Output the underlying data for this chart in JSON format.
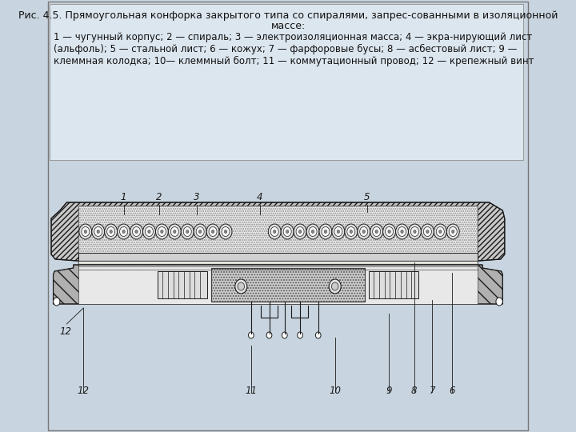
{
  "figure_bg": "#c8d4df",
  "text_box_bg": "#dce6ef",
  "text_box_border": "#999999",
  "dc": "#1a1a1a",
  "title_line1": "Рис. 4.5. Прямоугольная конфорка закрытого типа со спиралями, запрес-сованными в изоляционной",
  "title_line2": "массе:",
  "desc_line1": "1 — чугунный корпус; 2 — спираль; 3 — электроизоляционная масса; 4 — экра-нирующий лист",
  "desc_line2": "(альфоль); 5 — стальной лист; 6 — кожух; 7 — фарфоровые бусы; 8 — асбестовый лист; 9 —",
  "desc_line3": "клеммная колодка; 10— клеммный болт; 11 — коммутационный провод; 12 — крепежный винт",
  "font_title": 9.0,
  "font_desc": 8.5
}
